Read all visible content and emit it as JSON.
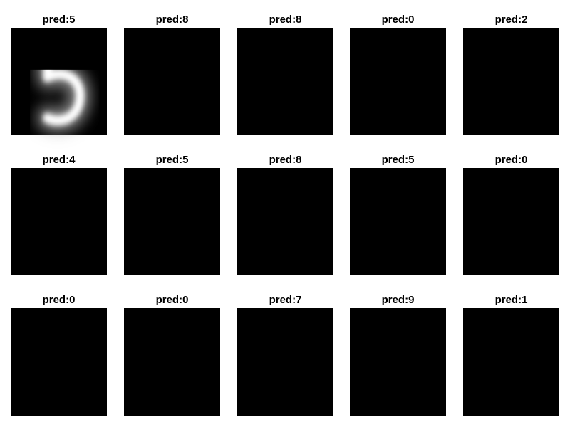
{
  "chart_data": {
    "type": "image-grid",
    "title": "",
    "grid": "3x5",
    "title_prefix": "pred:",
    "panels": [
      {
        "label": "pred:5",
        "pred": 5
      },
      {
        "label": "pred:8",
        "pred": 8
      },
      {
        "label": "pred:8",
        "pred": 8
      },
      {
        "label": "pred:0",
        "pred": 0
      },
      {
        "label": "pred:2",
        "pred": 2
      },
      {
        "label": "pred:4",
        "pred": 4
      },
      {
        "label": "pred:5",
        "pred": 5
      },
      {
        "label": "pred:8",
        "pred": 8
      },
      {
        "label": "pred:5",
        "pred": 5
      },
      {
        "label": "pred:0",
        "pred": 0
      },
      {
        "label": "pred:0",
        "pred": 0
      },
      {
        "label": "pred:0",
        "pred": 0
      },
      {
        "label": "pred:7",
        "pred": 7
      },
      {
        "label": "pred:9",
        "pred": 9
      },
      {
        "label": "pred:1",
        "pred": 1
      }
    ],
    "colors": {
      "background": "#000000",
      "stroke": "#ffffff",
      "glow": "#b8b8b8",
      "page": "#ffffff"
    }
  }
}
